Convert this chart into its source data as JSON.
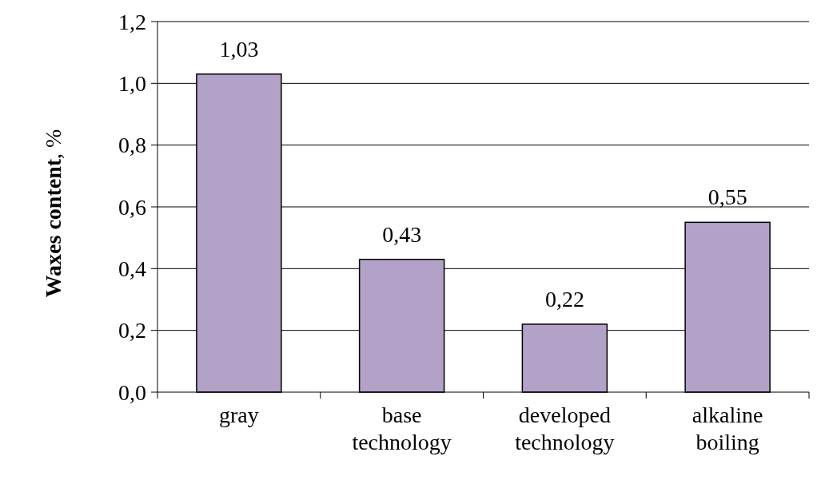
{
  "chart_data": {
    "type": "bar",
    "ylabel": "Waxes content, %",
    "categories": [
      "gray",
      "base technology",
      "developed technology",
      "alkaline boiling"
    ],
    "values": [
      1.03,
      0.43,
      0.22,
      0.55
    ],
    "color": "#b3a2c7",
    "ylim": [
      0,
      1.2
    ],
    "yticks": [
      {
        "value": 0,
        "label": "0,0"
      },
      {
        "value": 0.2,
        "label": "0,2"
      },
      {
        "value": 0.4,
        "label": "0,4"
      },
      {
        "value": 0.6,
        "label": "0,6"
      },
      {
        "value": 0.8,
        "label": "0,8"
      },
      {
        "value": 1,
        "label": "1,0"
      },
      {
        "value": 1.2,
        "label": "1,2"
      }
    ],
    "grid": "y",
    "value_labels": [
      "1,03",
      "0,43",
      "0,22",
      "0,55"
    ]
  }
}
